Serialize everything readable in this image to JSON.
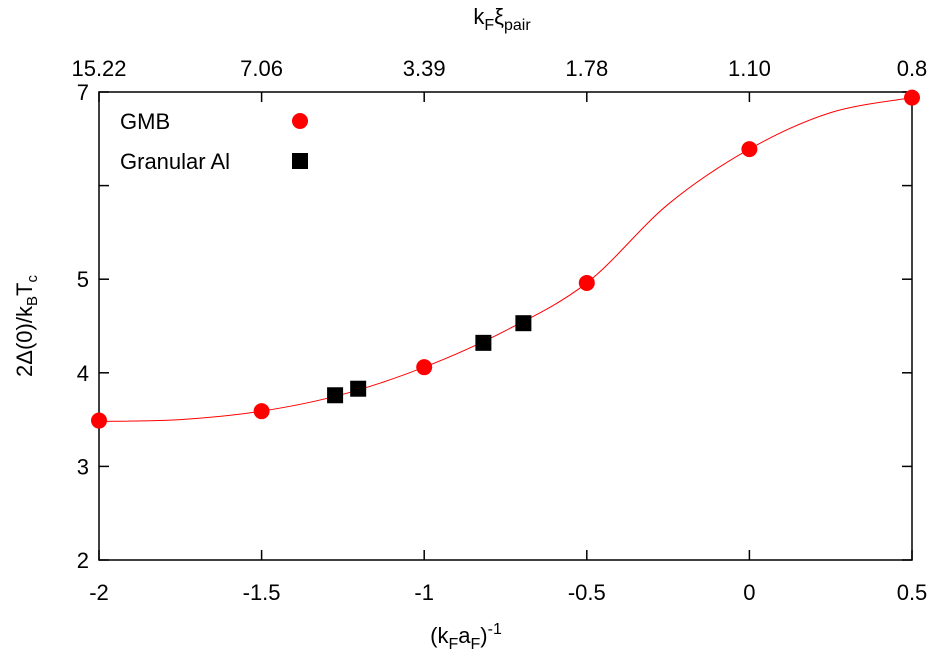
{
  "chart_data": {
    "type": "scatter",
    "xlabel": [
      "(k",
      "F",
      "a",
      "F",
      ")",
      "-1"
    ],
    "ylabel": [
      "2Δ(0)/k",
      "B",
      "T",
      "c"
    ],
    "x2label": [
      "k",
      "F",
      "ξ",
      "pair"
    ],
    "xlim": [
      -2,
      0.5
    ],
    "xticks": [
      -2,
      -1.5,
      -1,
      -0.5,
      0,
      0.5
    ],
    "ylim": [
      2,
      7
    ],
    "yticks": [
      2,
      3,
      4,
      5,
      {
        "value": 6,
        "label": null
      },
      7
    ],
    "x2ticks": [
      {
        "value": -2,
        "label": "15.22"
      },
      {
        "value": -1.5,
        "label": "7.06"
      },
      {
        "value": -1,
        "label": "3.39"
      },
      {
        "value": -0.5,
        "label": "1.78"
      },
      {
        "value": 0,
        "label": "1.10"
      },
      {
        "value": 0.5,
        "label": "0.8"
      }
    ],
    "legend": "upper left",
    "series": [
      {
        "name": "GMB",
        "color": "#ff0000",
        "marker": "circle",
        "x": [
          -2,
          -1.5,
          -1,
          -0.5,
          0,
          0.5
        ],
        "values": [
          3.49,
          3.59,
          4.06,
          4.96,
          6.39,
          6.94
        ]
      },
      {
        "name": "Granular Al",
        "color": "#000000",
        "marker": "square",
        "x": [
          -1.274,
          -1.203,
          -0.818,
          -0.695
        ],
        "values": [
          3.76,
          3.83,
          4.32,
          4.53
        ]
      }
    ],
    "curve": {
      "color": "#ff0000",
      "x": [
        -2,
        -1.75,
        -1.5,
        -1.25,
        -1,
        -0.75,
        -0.5,
        -0.25,
        0,
        0.25,
        0.5
      ],
      "values": [
        3.48,
        3.5,
        3.59,
        3.77,
        4.06,
        4.45,
        4.96,
        5.8,
        6.39,
        6.78,
        6.94
      ]
    }
  }
}
